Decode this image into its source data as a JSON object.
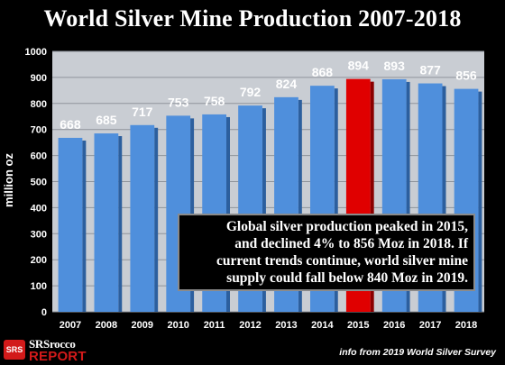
{
  "chart_data": {
    "type": "bar",
    "title": "World Silver Mine Production 2007-2018",
    "ylabel": "million oz",
    "xlabel": "",
    "categories": [
      "2007",
      "2008",
      "2009",
      "2010",
      "2011",
      "2012",
      "2013",
      "2014",
      "2015",
      "2016",
      "2017",
      "2018"
    ],
    "values": [
      668,
      685,
      717,
      753,
      758,
      792,
      824,
      868,
      894,
      893,
      877,
      856
    ],
    "ylim": [
      0,
      1000
    ],
    "yticks": [
      0,
      100,
      200,
      300,
      400,
      500,
      600,
      700,
      800,
      900,
      1000
    ],
    "highlight_category": "2015",
    "colors": {
      "bar": "#4f8fdc",
      "highlight": "#e00000",
      "background": "#000000",
      "plot_area": "#c9cdd3",
      "grid": "#8f949b"
    },
    "grid": true,
    "data_labels": true
  },
  "annotation": {
    "lines": [
      "Global silver production peaked in 2015,",
      "and declined 4% to 856 Moz in 2018.  If",
      "current trends continue, world silver mine",
      "supply could fall below 840 Moz in 2019."
    ]
  },
  "logo": {
    "badge": "SRS",
    "line1": "SRSrocco",
    "line2": "REPORT"
  },
  "source": "info from 2019 World Silver Survey"
}
